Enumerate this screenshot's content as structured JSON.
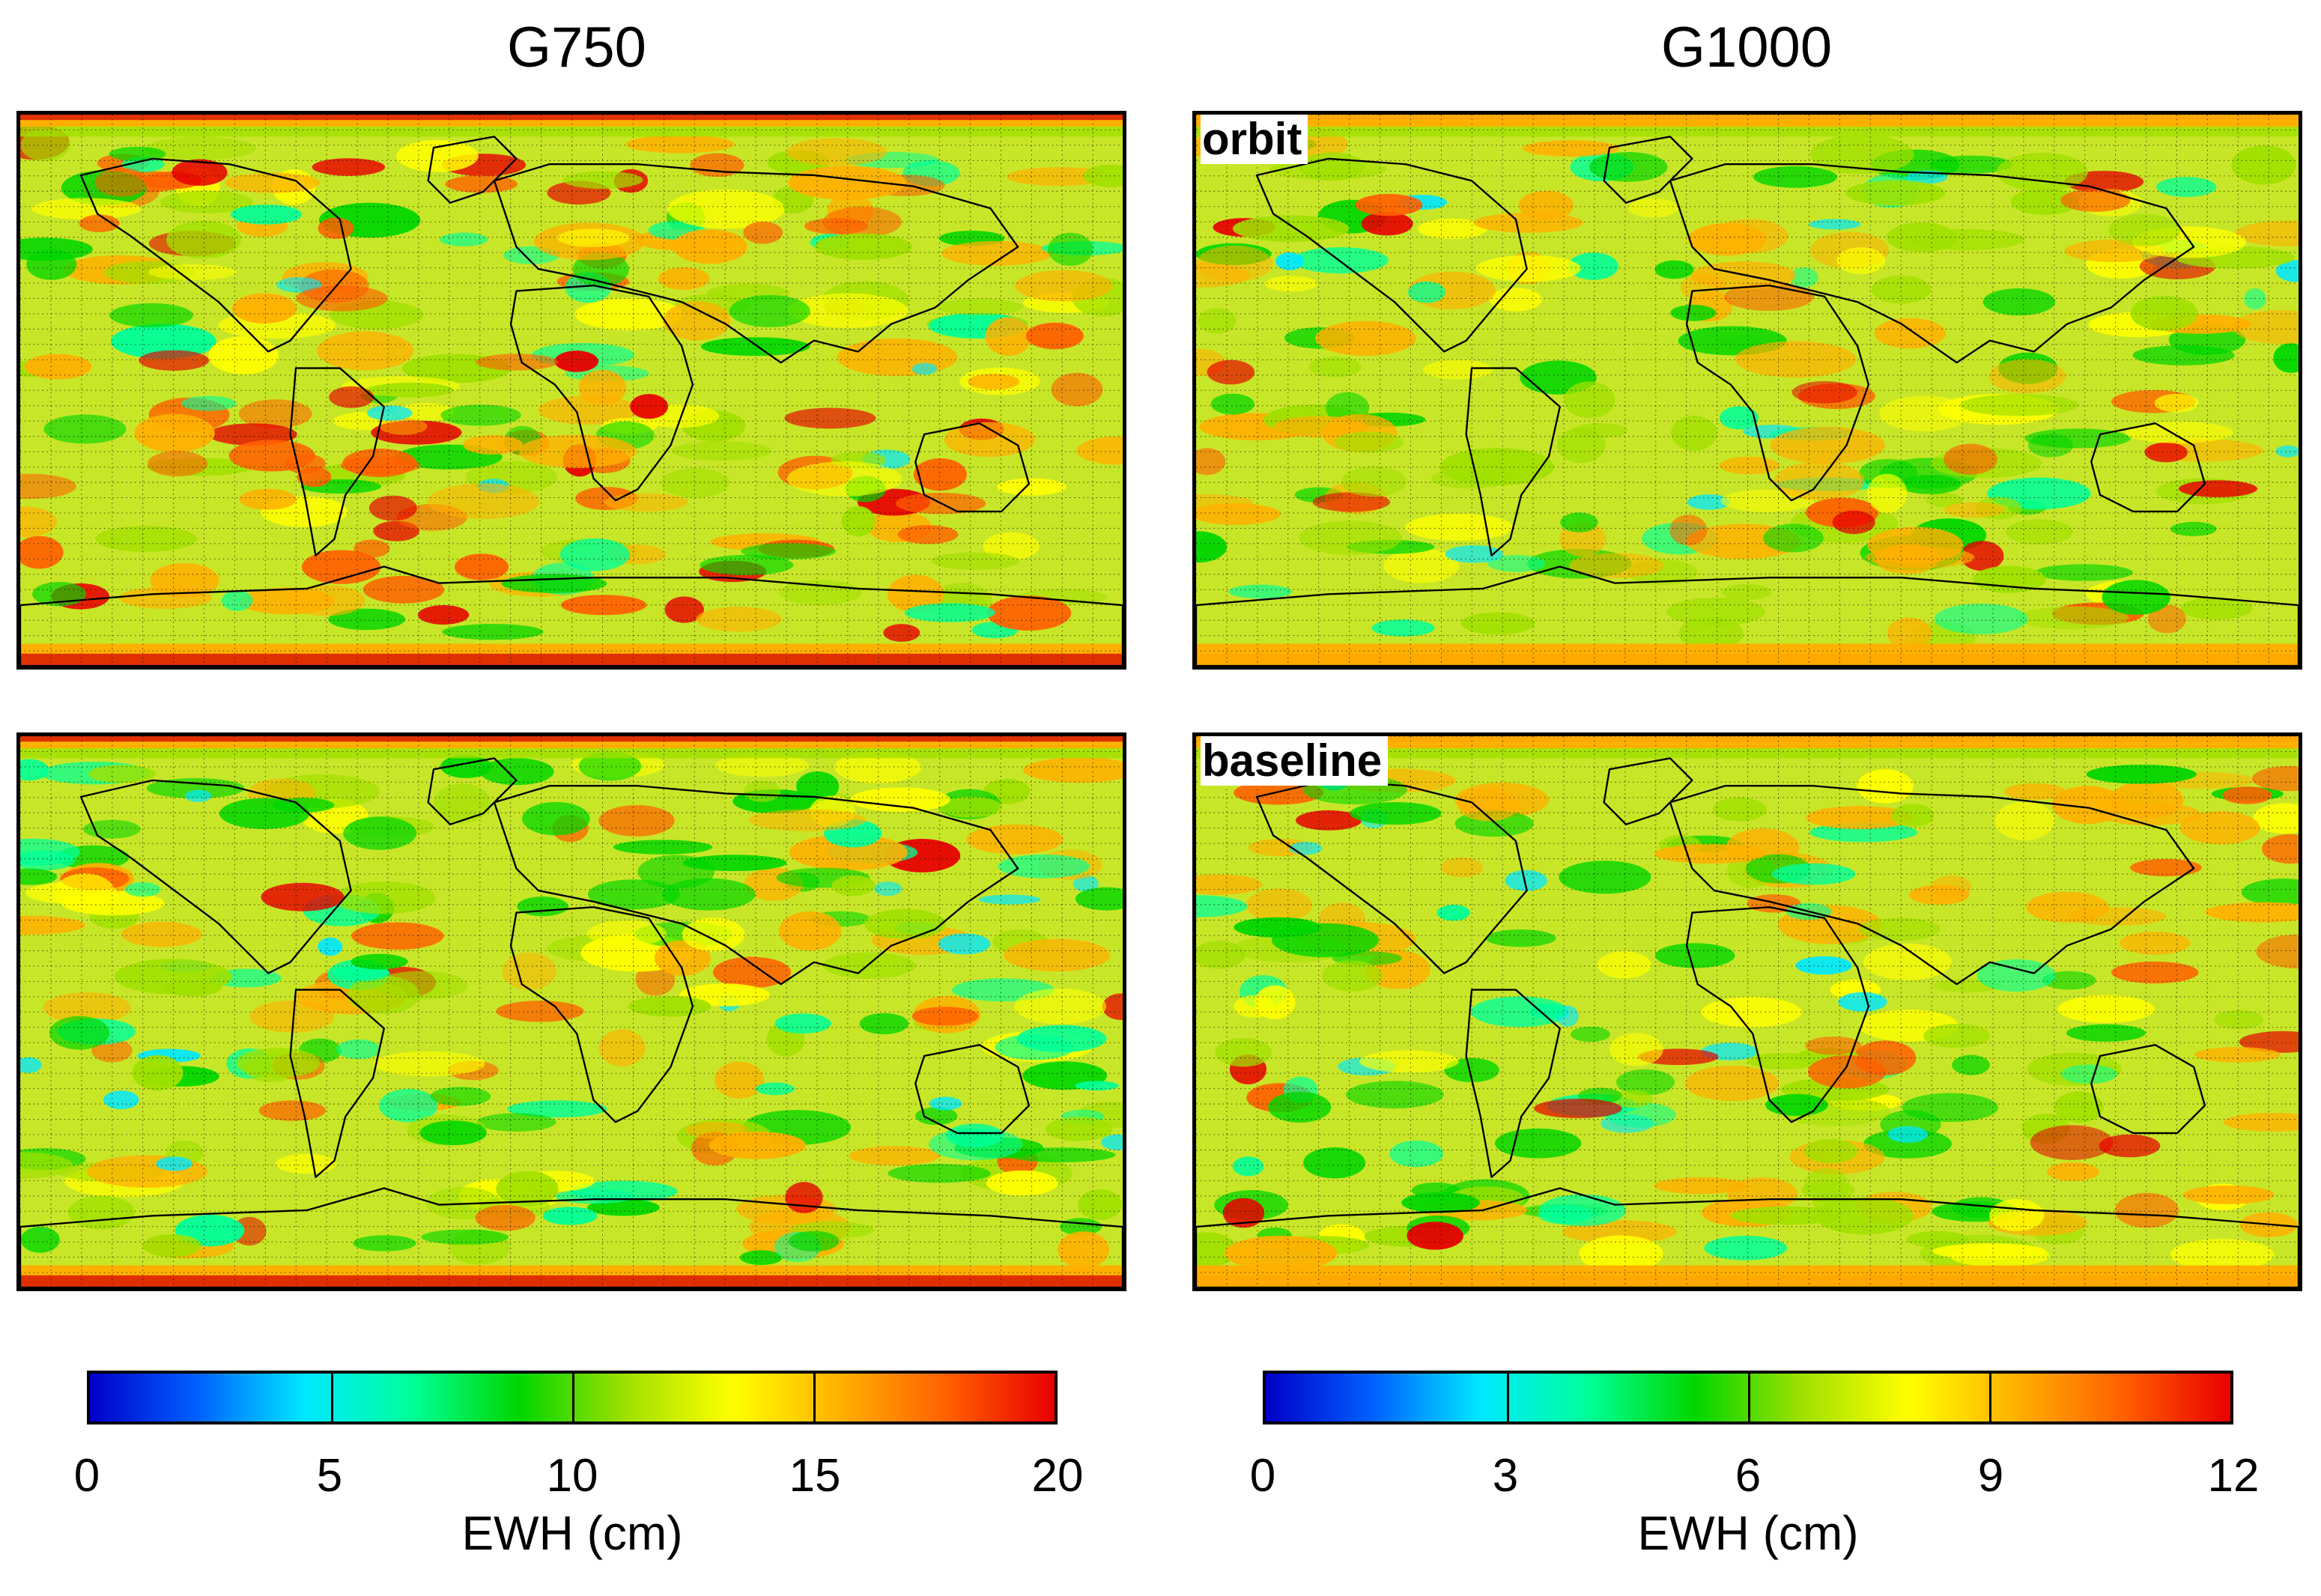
{
  "columns": [
    {
      "title": "G750"
    },
    {
      "title": "G1000"
    }
  ],
  "panels": [
    {
      "id": "g750-orbit",
      "label": "",
      "intensity": "high",
      "edge_color": "#e03000"
    },
    {
      "id": "g1000-orbit",
      "label": "orbit",
      "intensity": "medium",
      "edge_color": "#ffa800"
    },
    {
      "id": "g750-baseline",
      "label": "",
      "intensity": "low",
      "edge_color": "#e03000"
    },
    {
      "id": "g1000-baseline",
      "label": "baseline",
      "intensity": "medium",
      "edge_color": "#ffa800"
    }
  ],
  "colorbars": [
    {
      "ticks": [
        "0",
        "5",
        "10",
        "15",
        "20"
      ],
      "label": "EWH (cm)",
      "min": 0,
      "max": 20
    },
    {
      "ticks": [
        "0",
        "3",
        "6",
        "9",
        "12"
      ],
      "label": "EWH (cm)",
      "min": 0,
      "max": 12
    }
  ],
  "colors": {
    "scale": [
      "#0000c8",
      "#0060ff",
      "#00e8ff",
      "#00ff9a",
      "#00d600",
      "#a0e000",
      "#ffff00",
      "#ffb000",
      "#ff6000",
      "#e80000"
    ]
  }
}
